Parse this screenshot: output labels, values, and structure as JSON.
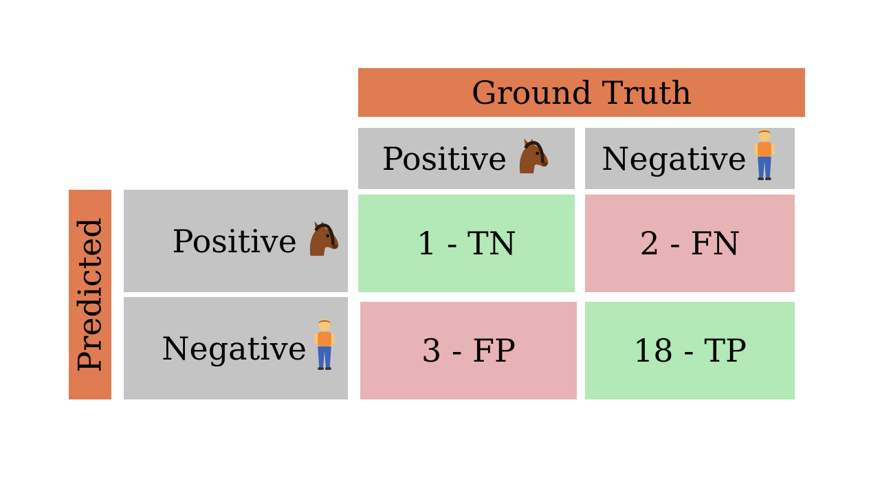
{
  "header": {
    "ground_truth": "Ground Truth",
    "predicted": "Predicted"
  },
  "columns": [
    {
      "label": "Positive",
      "icon": "horse-face-icon"
    },
    {
      "label": "Negative",
      "icon": "person-standing-icon"
    }
  ],
  "rows": [
    {
      "label": "Positive",
      "icon": "horse-face-icon"
    },
    {
      "label": "Negative",
      "icon": "person-standing-icon"
    }
  ],
  "cells": {
    "tn": "1 - TN",
    "fn": "2 - FN",
    "fp": "3 - FP",
    "tp": "18 - TP"
  },
  "colors": {
    "header": "#df7c52",
    "label_bg": "#c4c4c4",
    "correct": "#b3e8b7",
    "incorrect": "#e8b3b4"
  }
}
